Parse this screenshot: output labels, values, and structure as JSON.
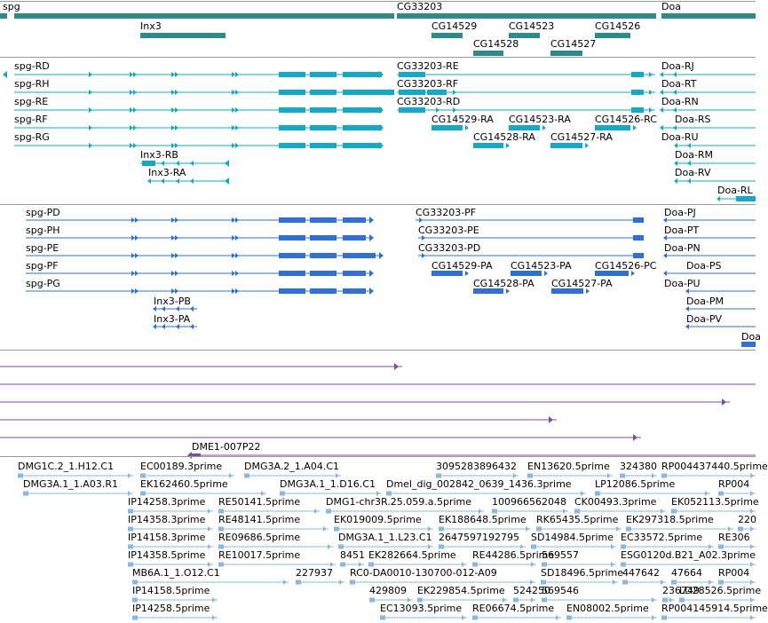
{
  "colors": {
    "gene": "#2e8b8b",
    "transcript": "#13a9c7",
    "protein": "#2f6fd6",
    "alignment": "#7b4fa3",
    "est": "#8ab8e0"
  },
  "tracks": {
    "genes": {
      "labels": [
        "spg",
        "CG33203",
        "Doa",
        "Inx3",
        "CG14529",
        "CG14523",
        "CG14526",
        "CG14528",
        "CG14527"
      ]
    },
    "transcripts": {
      "labels": [
        "spg-RD",
        "CG33203-RE",
        "Doa-RJ",
        "spg-RH",
        "CG33203-RF",
        "Doa-RT",
        "spg-RE",
        "CG33203-RD",
        "Doa-RN",
        "spg-RF",
        "CG14529-RA",
        "CG14523-RA",
        "CG14526-RC",
        "Doa-RS",
        "spg-RG",
        "CG14528-RA",
        "CG14527-RA",
        "Doa-RU",
        "Inx3-RB",
        "Doa-RM",
        "Inx3-RA",
        "Doa-RV",
        "Doa-RL"
      ]
    },
    "proteins": {
      "labels": [
        "spg-PD",
        "CG33203-PF",
        "Doa-PJ",
        "spg-PH",
        "CG33203-PE",
        "Doa-PT",
        "spg-PE",
        "CG33203-PD",
        "Doa-PN",
        "spg-PF",
        "CG14529-PA",
        "CG14523-PA",
        "CG14526-PC",
        "Doa-PS",
        "spg-PG",
        "CG14528-PA",
        "CG14527-PA",
        "Doa-PU",
        "Inx3-PB",
        "Doa-PM",
        "Inx3-PA",
        "Doa-PV",
        "Doa"
      ]
    },
    "alignments": {
      "labels": [
        "DME1-007P22"
      ]
    },
    "ests": {
      "labels": [
        "DMG1C.2_1.H12.C1",
        "EC00189.3prime",
        "DMG3A.2_1.A04.C1",
        "3095283896432",
        "EN13620.5prime",
        "324380",
        "RP004437440.5prime",
        "DMG3A.1_1.A03.R1",
        "EK162460.5prime",
        "DMG3A.1_1.D16.C1",
        "Dmel_dig_002842_0639_1436.3prime",
        "LP12086.5prime",
        "RP004",
        "IP14258.3prime",
        "RE50141.5prime",
        "DMG1-chr3R.25.059.a.5prime",
        "100966562048",
        "CK00493.3prime",
        "EK052113.5prime",
        "IP14358.3prime",
        "RE48141.5prime",
        "EK019009.5prime",
        "EK188648.5prime",
        "RK65435.5prime",
        "EK297318.5prime",
        "220",
        "IP14158.3prime",
        "RE09686.5prime",
        "DMG3A.1_1.L23.C1",
        "2647597192795",
        "SD14984.5prime",
        "EC33572.5prime",
        "RE306",
        "IP14358.5prime",
        "RE10017.5prime",
        "8451",
        "EK282664.5prime",
        "RE44286.5prime",
        "569557",
        "ESG0120d.B21_A02.3prime",
        "MB6A.1_1.O12.C1",
        "227937",
        "RC0-DA0010-130700-012-A09",
        "SD18496.5prime",
        "447642",
        "47664",
        "RP004",
        "IP14158.5prime",
        "429809",
        "EK229854.5prime",
        "524250",
        "569546",
        "236749",
        "LD28526.5prime",
        "IP14258.5prime",
        "EC13093.5prime",
        "RE06674.5prime",
        "EN08002.5prime",
        "RP004145914.5prime"
      ]
    }
  }
}
